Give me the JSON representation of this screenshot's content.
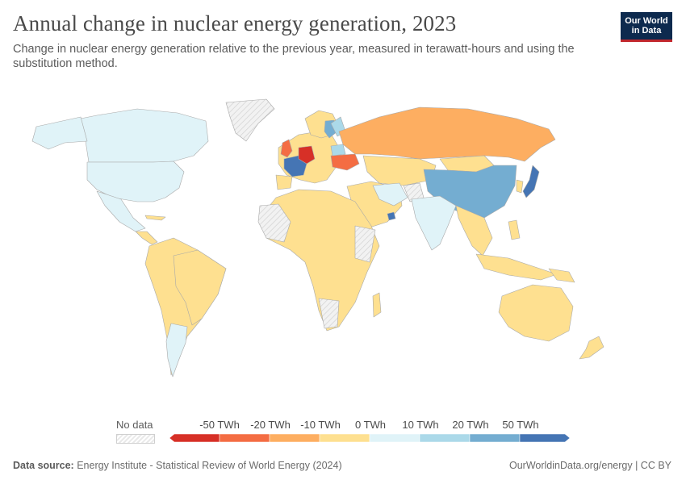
{
  "header": {
    "title": "Annual change in nuclear energy generation, 2023",
    "subtitle": "Change in nuclear energy generation relative to the previous year, measured in terawatt-hours and using the substitution method."
  },
  "logo": {
    "line1": "Our World",
    "line2": "in Data"
  },
  "legend": {
    "no_data_label": "No data",
    "ticks": [
      "-50 TWh",
      "-20 TWh",
      "-10 TWh",
      "0 TWh",
      "10 TWh",
      "20 TWh",
      "50 TWh"
    ],
    "bin_colors": [
      "#d73027",
      "#f46d43",
      "#fdae61",
      "#fee090",
      "#e0f3f8",
      "#abd9e9",
      "#74add1",
      "#4575b4"
    ]
  },
  "footer": {
    "source_label": "Data source:",
    "source_text": "Energy Institute - Statistical Review of World Energy (2024)",
    "right_text": "OurWorldinData.org/energy | CC BY"
  },
  "colors": {
    "neutral": "#fee090",
    "ocean": "#ffffff",
    "no_data": "#e9e9e9",
    "border": "#a9a9a9"
  }
}
